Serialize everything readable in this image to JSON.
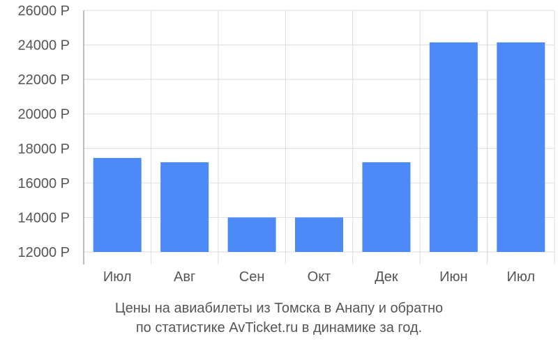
{
  "chart_data": {
    "type": "bar",
    "categories": [
      "Июл",
      "Авг",
      "Сен",
      "Окт",
      "Дек",
      "Июн",
      "Июл"
    ],
    "values": [
      17450,
      17200,
      14000,
      14000,
      17200,
      24150,
      24150
    ],
    "ylim": [
      12000,
      26000
    ],
    "yticks": [
      12000,
      14000,
      16000,
      18000,
      20000,
      22000,
      24000,
      26000
    ],
    "ytick_suffix": " Р",
    "grid": true,
    "bar_color": "#4d8af8",
    "grid_color": "#dddddd",
    "axis_color": "#aaaaaa",
    "caption_lines": [
      "Цены на авиабилеты из Томска в Анапу и обратно",
      "по статистике AvTicket.ru в динамике за год."
    ]
  }
}
